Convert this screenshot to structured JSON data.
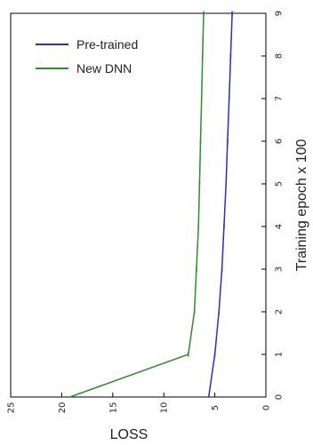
{
  "chart_data": {
    "type": "line",
    "orientation": "rotated-90",
    "xlabel": "Training epoch  x 100",
    "ylabel": "LOSS",
    "x": [
      0,
      1,
      2,
      3,
      4,
      5,
      6,
      7,
      8,
      9
    ],
    "xlim": [
      0,
      9
    ],
    "ylim": [
      0,
      25
    ],
    "x_ticks": [
      "0",
      "1",
      "2",
      "3",
      "4",
      "5",
      "6",
      "7",
      "8",
      "9"
    ],
    "y_ticks": [
      "0",
      "5",
      "10",
      "15",
      "20",
      "25"
    ],
    "grid": false,
    "legend_position": "top-left",
    "series": [
      {
        "name": "Pre-trained",
        "color": "#2b2bd8",
        "values": [
          5.6,
          5.0,
          4.6,
          4.3,
          4.1,
          3.9,
          3.75,
          3.6,
          3.45,
          3.3
        ]
      },
      {
        "name": "New DNN",
        "color": "#2e8b2e",
        "values": [
          19.2,
          7.6,
          7.0,
          6.8,
          6.6,
          6.5,
          6.4,
          6.3,
          6.2,
          6.1
        ]
      }
    ]
  }
}
